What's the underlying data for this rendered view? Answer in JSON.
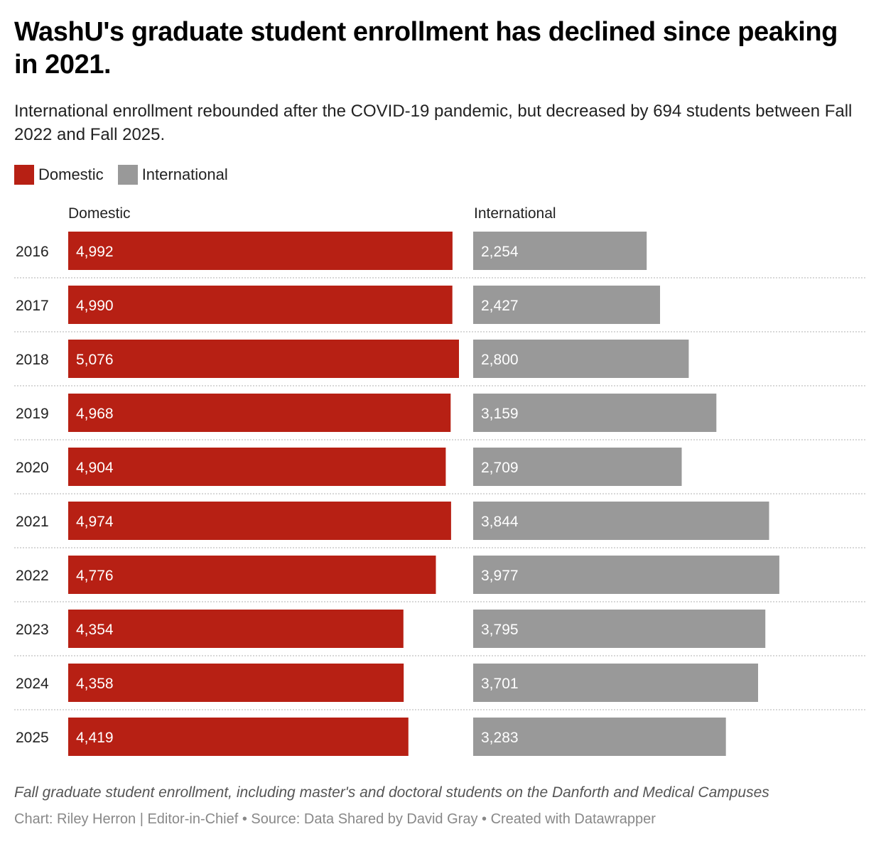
{
  "header": {
    "title": "WashU's graduate student enrollment has declined since peaking in 2021.",
    "subtitle": "International enrollment rebounded after the COVID-19 pandemic, but decreased by 694 students between Fall 2022 and Fall 2025."
  },
  "legend": [
    {
      "label": "Domestic",
      "color": "#b72014"
    },
    {
      "label": "International",
      "color": "#999999"
    }
  ],
  "footer": {
    "notes": "Fall graduate student enrollment, including master's and doctoral students on the Danforth and Medical Campuses",
    "credits": "Chart: Riley Herron | Editor-in-Chief • Source: Data Shared by David Gray • Created with Datawrapper"
  },
  "chart_data": {
    "type": "bar",
    "orientation": "horizontal",
    "layout": "split-bars",
    "title": "WashU's graduate student enrollment has declined since peaking in 2021.",
    "categories": [
      "2016",
      "2017",
      "2018",
      "2019",
      "2020",
      "2021",
      "2022",
      "2023",
      "2024",
      "2025"
    ],
    "series": [
      {
        "name": "Domestic",
        "color": "#b72014",
        "values": [
          4992,
          4990,
          5076,
          4968,
          4904,
          4974,
          4776,
          4354,
          4358,
          4419
        ],
        "labels": [
          "4,992",
          "4,990",
          "5,076",
          "4,968",
          "4,904",
          "4,974",
          "4,776",
          "4,354",
          "4,358",
          "4,419"
        ]
      },
      {
        "name": "International",
        "color": "#999999",
        "values": [
          2254,
          2427,
          2800,
          3159,
          2709,
          3844,
          3977,
          3795,
          3701,
          3283
        ],
        "labels": [
          "2,254",
          "2,427",
          "2,800",
          "3,159",
          "2,709",
          "3,844",
          "3,977",
          "3,795",
          "3,701",
          "3,283"
        ]
      }
    ],
    "column_headers": [
      "Domestic",
      "International"
    ],
    "grid": "dotted row separators",
    "legend_position": "top-left"
  }
}
